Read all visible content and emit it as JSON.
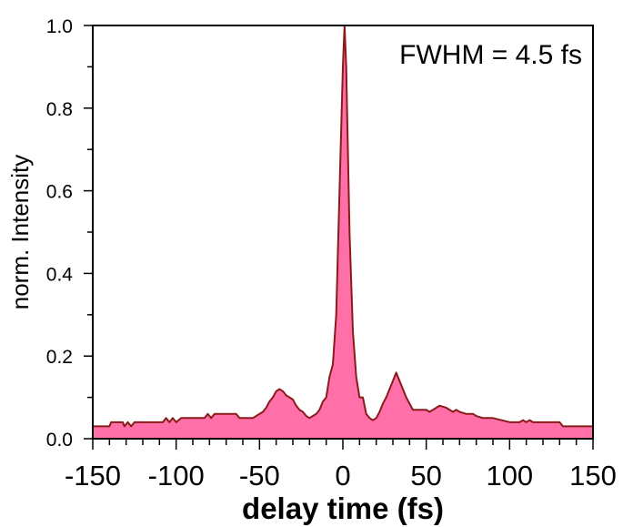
{
  "chart_data": {
    "type": "area",
    "title": "",
    "xlabel": "delay time (fs)",
    "ylabel": "norm. Intensity",
    "xlim": [
      -150,
      150
    ],
    "ylim": [
      0,
      1.0
    ],
    "x_ticks": [
      -150,
      -100,
      -50,
      0,
      50,
      100,
      150
    ],
    "x_tick_labels": [
      "-150",
      "-100",
      "-50",
      "0",
      "50",
      "100",
      "150"
    ],
    "y_ticks": [
      0.0,
      0.2,
      0.4,
      0.6,
      0.8,
      1.0
    ],
    "y_tick_labels": [
      "0.0",
      "0.2",
      "0.4",
      "0.6",
      "0.8",
      "1.0"
    ],
    "grid": false,
    "annotation": "FWHM = 4.5 fs",
    "fill_color": "#ff6fa8",
    "line_color": "#8b1a1a",
    "series": [
      {
        "x": [
          -150,
          -140,
          -139,
          -137,
          -132,
          -131,
          -129,
          -127,
          -125,
          -108,
          -106,
          -104,
          -102,
          -100,
          -97,
          -83,
          -81,
          -79,
          -77,
          -64,
          -62,
          -54,
          -50,
          -48,
          -46,
          -44,
          -42,
          -40,
          -38,
          -36,
          -34,
          -32,
          -30,
          -28,
          -26,
          -24,
          -22,
          -20,
          -18,
          -16,
          -14,
          -12,
          -10,
          -8,
          -6,
          -4,
          -2,
          0,
          1,
          2,
          3,
          4,
          6,
          8,
          10,
          12,
          14,
          16,
          18,
          20,
          22,
          24,
          26,
          28,
          30,
          32,
          34,
          36,
          38,
          40,
          42,
          44,
          46,
          48,
          50,
          52,
          54,
          58,
          62,
          64,
          66,
          68,
          70,
          74,
          78,
          80,
          84,
          90,
          100,
          106,
          108,
          110,
          112,
          114,
          120,
          130,
          132,
          134,
          140,
          150
        ],
        "y": [
          0.03,
          0.03,
          0.04,
          0.04,
          0.04,
          0.03,
          0.04,
          0.03,
          0.04,
          0.04,
          0.05,
          0.04,
          0.05,
          0.04,
          0.05,
          0.05,
          0.06,
          0.05,
          0.06,
          0.06,
          0.05,
          0.05,
          0.06,
          0.065,
          0.075,
          0.09,
          0.1,
          0.115,
          0.12,
          0.115,
          0.105,
          0.1,
          0.095,
          0.08,
          0.07,
          0.065,
          0.055,
          0.05,
          0.055,
          0.06,
          0.07,
          0.09,
          0.1,
          0.15,
          0.18,
          0.3,
          0.6,
          0.9,
          1.0,
          0.9,
          0.7,
          0.5,
          0.26,
          0.15,
          0.1,
          0.1,
          0.06,
          0.05,
          0.045,
          0.05,
          0.065,
          0.085,
          0.1,
          0.12,
          0.14,
          0.16,
          0.14,
          0.12,
          0.1,
          0.085,
          0.07,
          0.07,
          0.07,
          0.07,
          0.07,
          0.065,
          0.07,
          0.08,
          0.075,
          0.07,
          0.065,
          0.07,
          0.065,
          0.06,
          0.06,
          0.055,
          0.05,
          0.05,
          0.04,
          0.04,
          0.045,
          0.04,
          0.045,
          0.04,
          0.04,
          0.04,
          0.03,
          0.03,
          0.03,
          0.03
        ]
      }
    ]
  }
}
